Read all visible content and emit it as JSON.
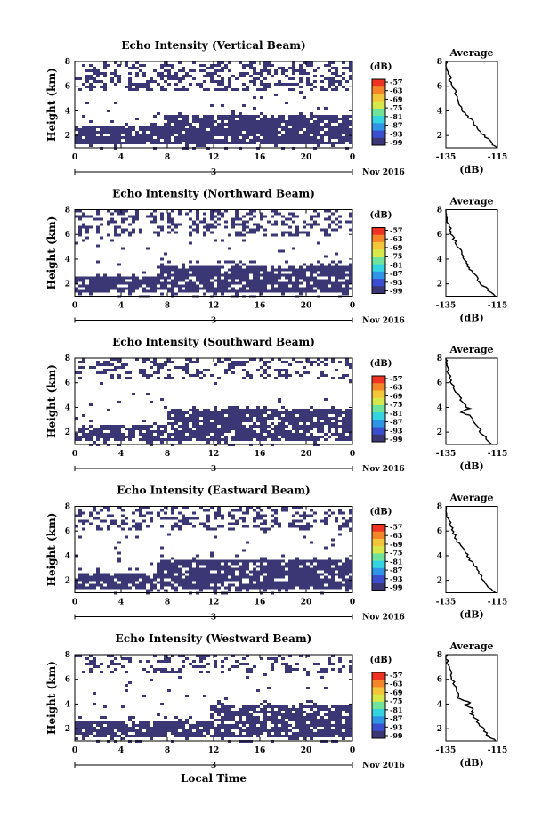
{
  "figure": {
    "bottom_xlabel": "Local Time"
  },
  "colorbar": {
    "unit": "(dB)",
    "tick_labels": [
      "-57",
      "-63",
      "-69",
      "-75",
      "-81",
      "-87",
      "-93",
      "-99"
    ],
    "colors": [
      "#ee3322",
      "#f4862a",
      "#f2c53a",
      "#d6e84a",
      "#6fe39a",
      "#34d3e0",
      "#2f93e6",
      "#3b4fce",
      "#3b3775"
    ]
  },
  "colors": {
    "echo": "#3b3775",
    "frame": "#000000",
    "background": "#ffffff"
  },
  "chart_data": [
    {
      "type": "heatmap",
      "title": "Echo Intensity (Vertical Beam)",
      "ylabel": "Height (km)",
      "x_ticks": [
        "0",
        "4",
        "8",
        "12",
        "16",
        "20",
        "0"
      ],
      "y_ticks": [
        "2",
        "4",
        "6",
        "8"
      ],
      "date_day": "3",
      "date_label": "Nov 2016",
      "xlim": [
        0,
        24
      ],
      "ylim": [
        1,
        8
      ],
      "layers": {
        "low_top_early": 3.0,
        "low_top_late": 3.7,
        "change_hour": 7.5,
        "upper_bottom": 5.8,
        "upper_density": 0.55,
        "low_density": 0.88
      },
      "profile": {
        "title": "Average",
        "xlabel": "(dB)",
        "x_ticks": [
          "-135",
          "-115"
        ],
        "y_ticks": [
          "2",
          "4",
          "6",
          "8"
        ],
        "xlim": [
          -135,
          -115
        ],
        "ylim": [
          1,
          8
        ],
        "points": [
          [
            -115,
            1.0
          ],
          [
            -118,
            1.5
          ],
          [
            -120,
            2.0
          ],
          [
            -123,
            2.6
          ],
          [
            -125,
            3.2
          ],
          [
            -127,
            3.7
          ],
          [
            -129,
            4.2
          ],
          [
            -130,
            4.7
          ],
          [
            -131,
            5.3
          ],
          [
            -132,
            5.8
          ],
          [
            -133,
            6.3
          ],
          [
            -134,
            7.0
          ],
          [
            -135,
            7.6
          ],
          [
            -135,
            8.0
          ]
        ]
      }
    },
    {
      "type": "heatmap",
      "title": "Echo Intensity (Northward Beam)",
      "ylabel": "Height (km)",
      "x_ticks": [
        "0",
        "4",
        "8",
        "12",
        "16",
        "20",
        "0"
      ],
      "y_ticks": [
        "2",
        "4",
        "6",
        "8"
      ],
      "date_day": "3",
      "date_label": "Nov 2016",
      "xlim": [
        0,
        24
      ],
      "ylim": [
        1,
        8
      ],
      "layers": {
        "low_top_early": 2.8,
        "low_top_late": 3.6,
        "change_hour": 7.0,
        "upper_bottom": 6.0,
        "upper_density": 0.45,
        "low_density": 0.82
      },
      "profile": {
        "title": "Average",
        "xlabel": "(dB)",
        "x_ticks": [
          "-135",
          "-115"
        ],
        "y_ticks": [
          "2",
          "4",
          "6",
          "8"
        ],
        "xlim": [
          -135,
          -115
        ],
        "ylim": [
          1,
          8
        ],
        "points": [
          [
            -116,
            1.0
          ],
          [
            -119,
            1.6
          ],
          [
            -122,
            2.1
          ],
          [
            -124,
            2.8
          ],
          [
            -126,
            3.3
          ],
          [
            -127,
            3.8
          ],
          [
            -129,
            4.4
          ],
          [
            -130,
            5.0
          ],
          [
            -132,
            5.6
          ],
          [
            -133,
            6.2
          ],
          [
            -134,
            6.8
          ],
          [
            -135,
            7.5
          ],
          [
            -135,
            8.0
          ]
        ]
      }
    },
    {
      "type": "heatmap",
      "title": "Echo Intensity (Southward Beam)",
      "ylabel": "Height (km)",
      "x_ticks": [
        "0",
        "4",
        "8",
        "12",
        "16",
        "20",
        "0"
      ],
      "y_ticks": [
        "2",
        "4",
        "6",
        "8"
      ],
      "date_day": "3",
      "date_label": "Nov 2016",
      "xlim": [
        0,
        24
      ],
      "ylim": [
        1,
        8
      ],
      "layers": {
        "low_top_early": 2.7,
        "low_top_late": 3.9,
        "change_hour": 8.0,
        "upper_bottom": 6.3,
        "upper_density": 0.4,
        "low_density": 0.8
      },
      "profile": {
        "title": "Average",
        "xlabel": "(dB)",
        "x_ticks": [
          "-135",
          "-115"
        ],
        "y_ticks": [
          "2",
          "4",
          "6",
          "8"
        ],
        "xlim": [
          -135,
          -115
        ],
        "ylim": [
          1,
          8
        ],
        "points": [
          [
            -117,
            1.0
          ],
          [
            -120,
            1.6
          ],
          [
            -122,
            2.2
          ],
          [
            -124,
            2.8
          ],
          [
            -125,
            3.3
          ],
          [
            -129,
            3.6
          ],
          [
            -126,
            3.9
          ],
          [
            -128,
            4.3
          ],
          [
            -130,
            4.9
          ],
          [
            -132,
            5.6
          ],
          [
            -133,
            6.2
          ],
          [
            -134,
            6.9
          ],
          [
            -135,
            7.6
          ],
          [
            -135,
            8.0
          ]
        ]
      }
    },
    {
      "type": "heatmap",
      "title": "Echo Intensity (Eastward Beam)",
      "ylabel": "Height (km)",
      "x_ticks": [
        "0",
        "4",
        "8",
        "12",
        "16",
        "20",
        "0"
      ],
      "y_ticks": [
        "2",
        "4",
        "6",
        "8"
      ],
      "date_day": "3",
      "date_label": "Nov 2016",
      "xlim": [
        0,
        24
      ],
      "ylim": [
        1,
        8
      ],
      "layers": {
        "low_top_early": 2.8,
        "low_top_late": 3.8,
        "change_hour": 7.0,
        "upper_bottom": 6.2,
        "upper_density": 0.45,
        "low_density": 0.86
      },
      "profile": {
        "title": "Average",
        "xlabel": "(dB)",
        "x_ticks": [
          "-135",
          "-115"
        ],
        "y_ticks": [
          "2",
          "4",
          "6",
          "8"
        ],
        "xlim": [
          -135,
          -115
        ],
        "ylim": [
          1,
          8
        ],
        "points": [
          [
            -116,
            1.0
          ],
          [
            -119,
            1.6
          ],
          [
            -121,
            2.2
          ],
          [
            -123,
            2.9
          ],
          [
            -125,
            3.5
          ],
          [
            -127,
            4.1
          ],
          [
            -129,
            4.7
          ],
          [
            -131,
            5.3
          ],
          [
            -132,
            5.8
          ],
          [
            -133,
            6.4
          ],
          [
            -134,
            7.0
          ],
          [
            -135,
            7.6
          ],
          [
            -135,
            8.0
          ]
        ]
      }
    },
    {
      "type": "heatmap",
      "title": "Echo Intensity (Westward Beam)",
      "ylabel": "Height (km)",
      "x_ticks": [
        "0",
        "4",
        "8",
        "12",
        "16",
        "20",
        "0"
      ],
      "y_ticks": [
        "2",
        "4",
        "6",
        "8"
      ],
      "date_day": "3",
      "date_label": "Nov 2016",
      "xlim": [
        0,
        24
      ],
      "ylim": [
        1,
        8
      ],
      "layers": {
        "low_top_early": 2.7,
        "low_top_late": 4.0,
        "change_hour": 11.5,
        "upper_bottom": 6.5,
        "upper_density": 0.35,
        "low_density": 0.83
      },
      "profile": {
        "title": "Average",
        "xlabel": "(dB)",
        "x_ticks": [
          "-135",
          "-115"
        ],
        "y_ticks": [
          "2",
          "4",
          "6",
          "8"
        ],
        "xlim": [
          -135,
          -115
        ],
        "ylim": [
          1,
          8
        ],
        "points": [
          [
            -116,
            1.0
          ],
          [
            -119,
            1.5
          ],
          [
            -121,
            2.1
          ],
          [
            -123,
            2.7
          ],
          [
            -125,
            3.2
          ],
          [
            -124,
            3.6
          ],
          [
            -128,
            3.9
          ],
          [
            -126,
            4.1
          ],
          [
            -130,
            4.5
          ],
          [
            -131,
            5.2
          ],
          [
            -132,
            5.8
          ],
          [
            -133,
            6.5
          ],
          [
            -134,
            7.2
          ],
          [
            -135,
            7.8
          ],
          [
            -135,
            8.0
          ]
        ]
      }
    }
  ]
}
